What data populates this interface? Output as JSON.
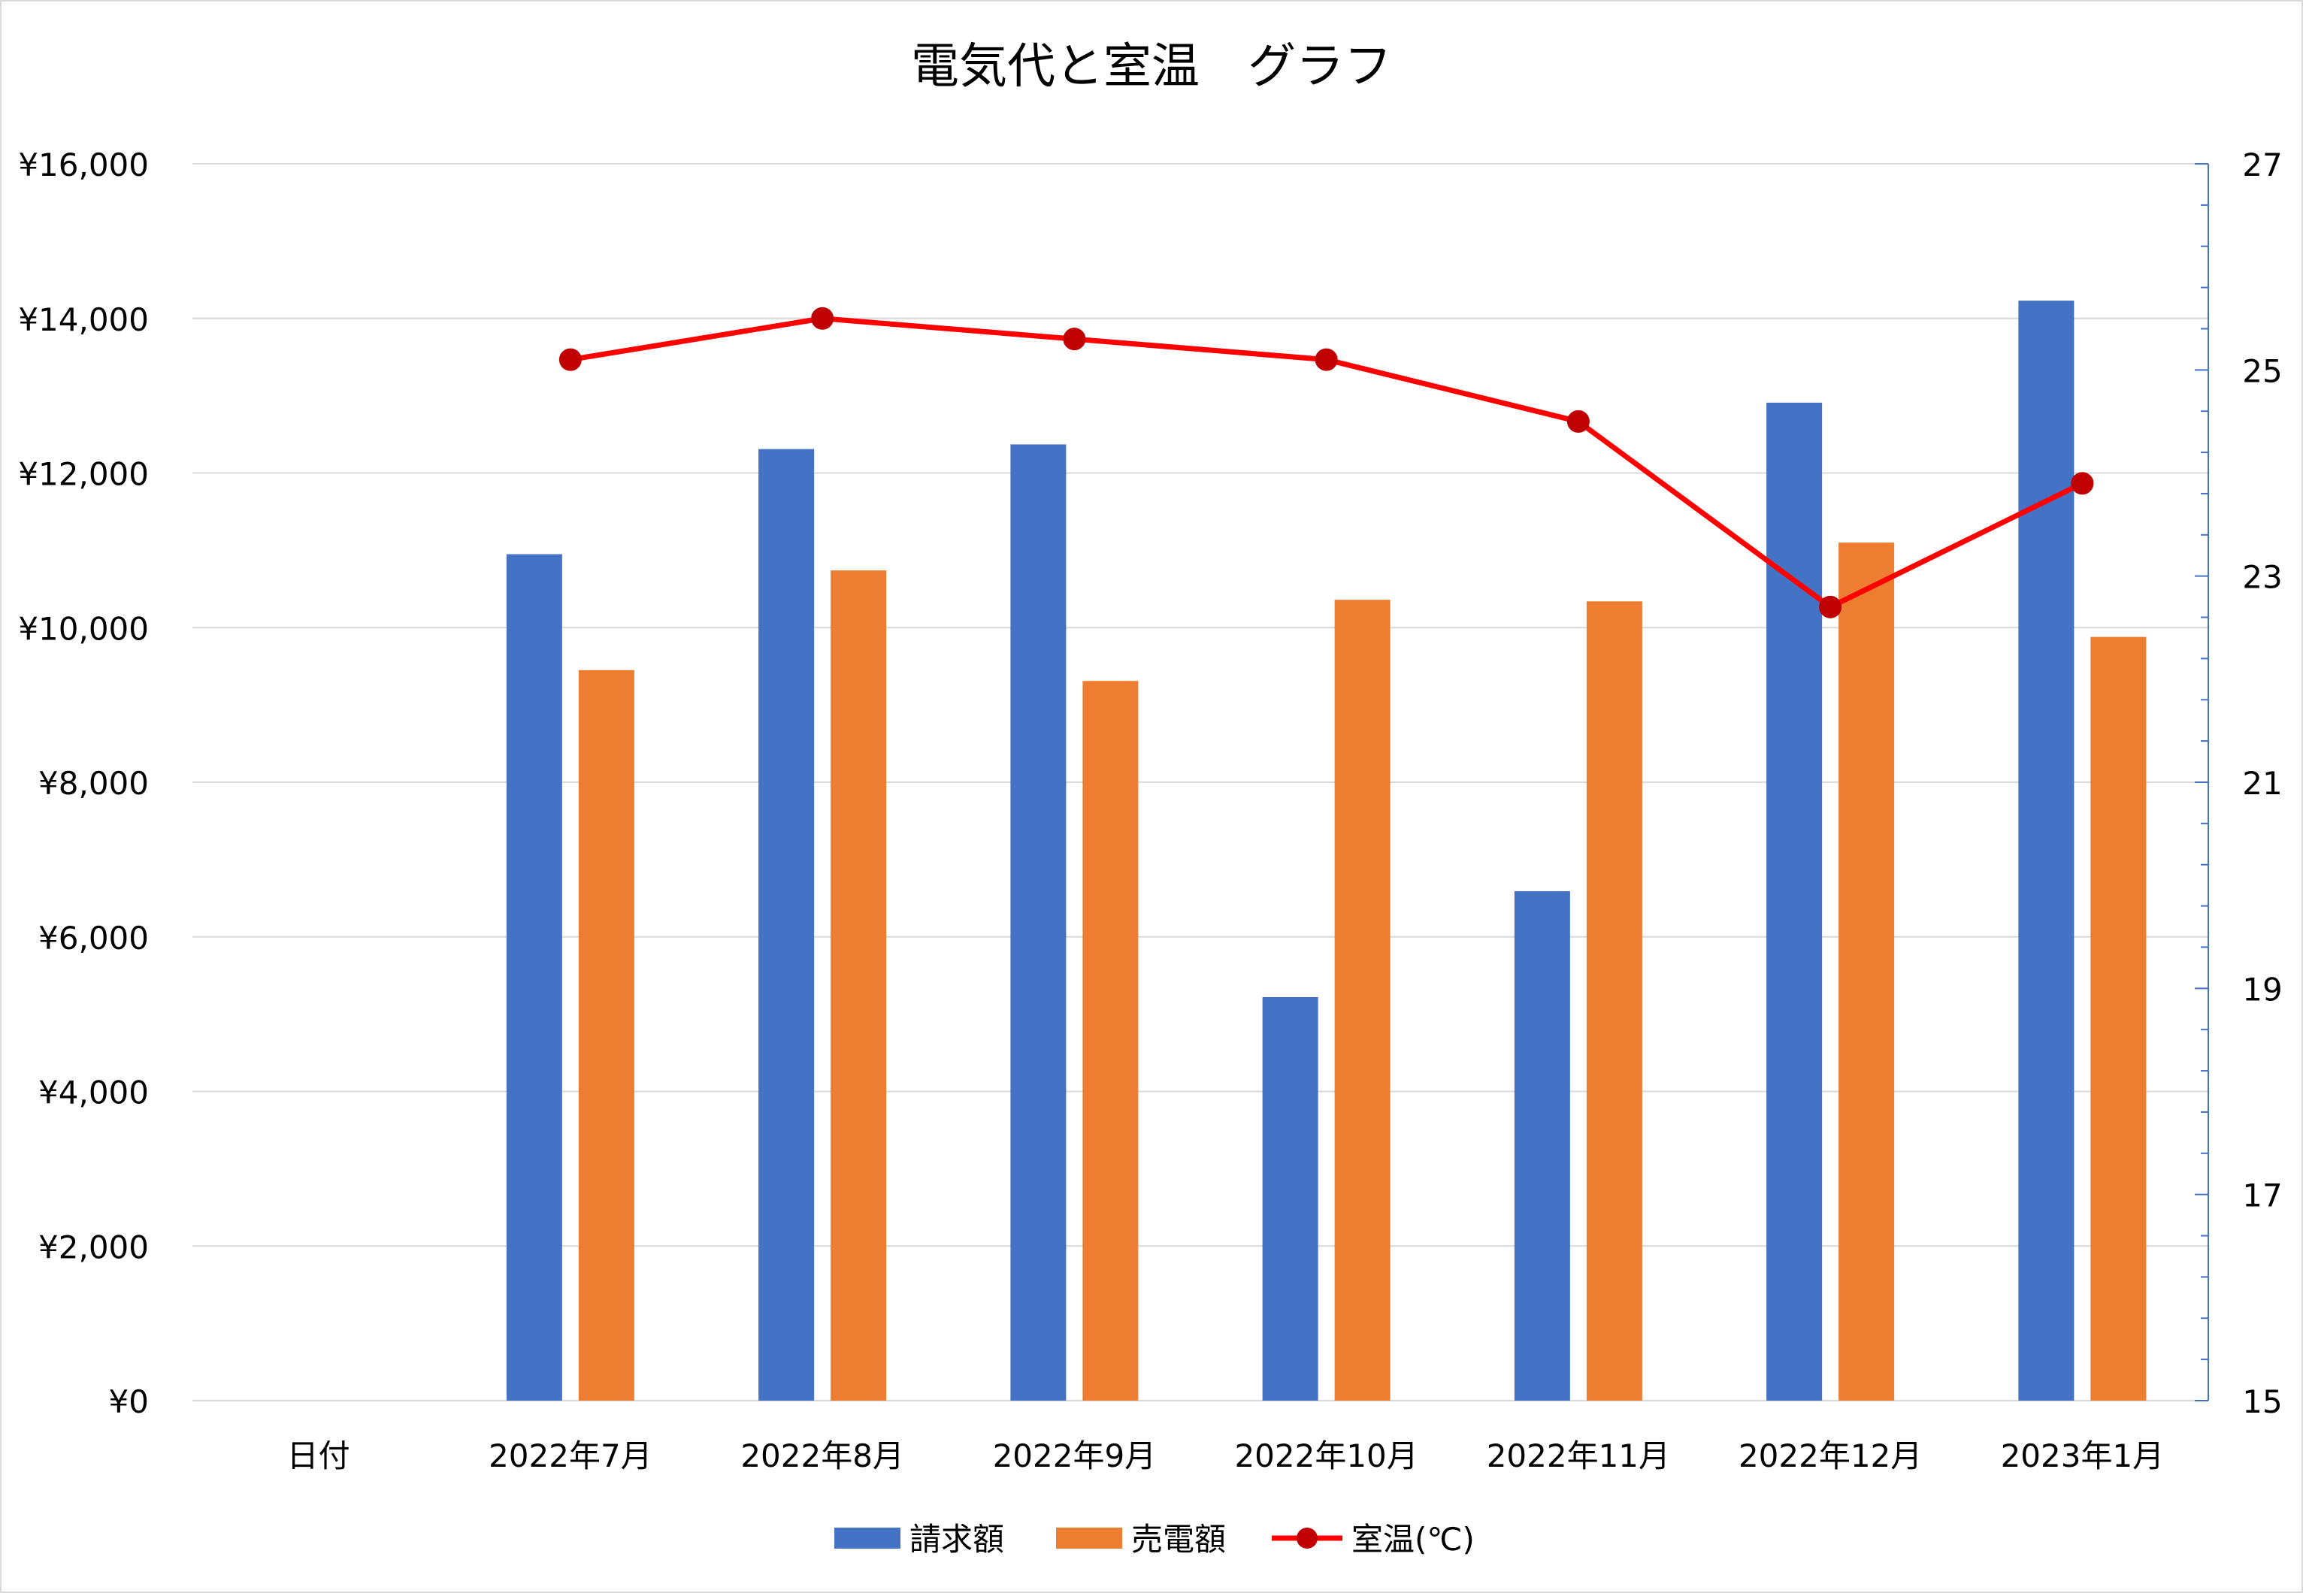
{
  "chart_data": {
    "type": "bar",
    "title": "電気代と室温　グラフ",
    "categories": [
      "日付",
      "2022年7月",
      "2022年8月",
      "2022年9月",
      "2022年10月",
      "2022年11月",
      "2022年12月",
      "2023年1月"
    ],
    "series": [
      {
        "name": "請求額",
        "type": "bar",
        "axis": "left",
        "color": "#4472C4",
        "values": [
          null,
          10950,
          12310,
          12370,
          5220,
          6590,
          12910,
          14230
        ]
      },
      {
        "name": "売電額",
        "type": "bar",
        "axis": "left",
        "color": "#ED7D31",
        "values": [
          null,
          9450,
          10740,
          9310,
          10360,
          10340,
          11100,
          9880
        ]
      },
      {
        "name": "室温(℃)",
        "type": "line",
        "axis": "right",
        "color": "#FF0000",
        "values": [
          null,
          25.1,
          25.5,
          25.3,
          25.1,
          24.5,
          22.7,
          23.9
        ]
      }
    ],
    "y_left": {
      "ylim": [
        0,
        16000
      ],
      "ticks": [
        0,
        2000,
        4000,
        6000,
        8000,
        10000,
        12000,
        14000,
        16000
      ],
      "tick_labels": [
        "¥0",
        "¥2,000",
        "¥4,000",
        "¥6,000",
        "¥8,000",
        "¥10,000",
        "¥12,000",
        "¥14,000",
        "¥16,000"
      ]
    },
    "y_right": {
      "ylim": [
        15,
        27
      ],
      "ticks": [
        15,
        17,
        19,
        21,
        23,
        25,
        27
      ],
      "tick_labels": [
        "15",
        "17",
        "19",
        "21",
        "23",
        "25",
        "27"
      ]
    },
    "grid": true,
    "legend": "bottom",
    "xlabel": "",
    "ylabel": ""
  }
}
